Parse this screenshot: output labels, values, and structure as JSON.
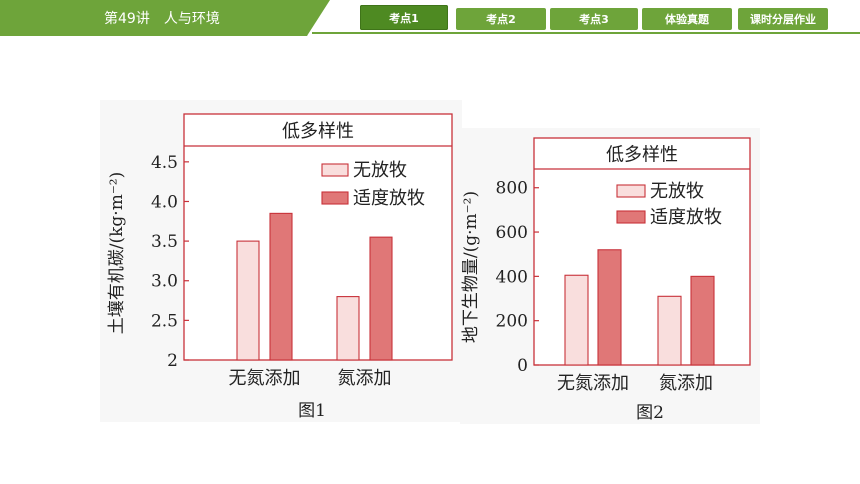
{
  "header": {
    "lesson_title": "第49讲　人与环境",
    "tabs": [
      {
        "label": "考点1",
        "active": true
      },
      {
        "label": "考点2",
        "active": false
      },
      {
        "label": "考点3",
        "active": false
      },
      {
        "label": "体验真题",
        "active": false
      },
      {
        "label": "课时分层作业",
        "active": false
      }
    ]
  },
  "colors": {
    "theme_green": "#6ea43a",
    "frame_red": "#c8323a",
    "no_grazing_fill": "#f9dedd",
    "moderate_grazing_fill": "#e07777"
  },
  "chart_data": [
    {
      "type": "bar",
      "title": "低多样性",
      "caption": "图1",
      "ylabel": "土壤有机碳/(kg·m⁻²)",
      "xlabel": "",
      "categories": [
        "无氮添加",
        "氮添加"
      ],
      "series": [
        {
          "name": "无放牧",
          "values": [
            3.5,
            2.8
          ]
        },
        {
          "name": "适度放牧",
          "values": [
            3.85,
            3.55
          ]
        }
      ],
      "ylim": [
        2,
        4.7
      ],
      "yticks": [
        "2",
        "2.5",
        "3.0",
        "3.5",
        "4.0",
        "4.5"
      ],
      "ytick_values": [
        2,
        2.5,
        3.0,
        3.5,
        4.0,
        4.5
      ],
      "legend": "top-right",
      "grid": false
    },
    {
      "type": "bar",
      "title": "低多样性",
      "caption": "图2",
      "ylabel": "地下生物量/(g·m⁻²)",
      "xlabel": "",
      "categories": [
        "无氮添加",
        "氮添加"
      ],
      "series": [
        {
          "name": "无放牧",
          "values": [
            405,
            310
          ]
        },
        {
          "name": "适度放牧",
          "values": [
            520,
            400
          ]
        }
      ],
      "ylim": [
        0,
        880
      ],
      "yticks": [
        "0",
        "200",
        "400",
        "600",
        "800"
      ],
      "ytick_values": [
        0,
        200,
        400,
        600,
        800
      ],
      "legend": "top-right",
      "grid": false
    }
  ]
}
